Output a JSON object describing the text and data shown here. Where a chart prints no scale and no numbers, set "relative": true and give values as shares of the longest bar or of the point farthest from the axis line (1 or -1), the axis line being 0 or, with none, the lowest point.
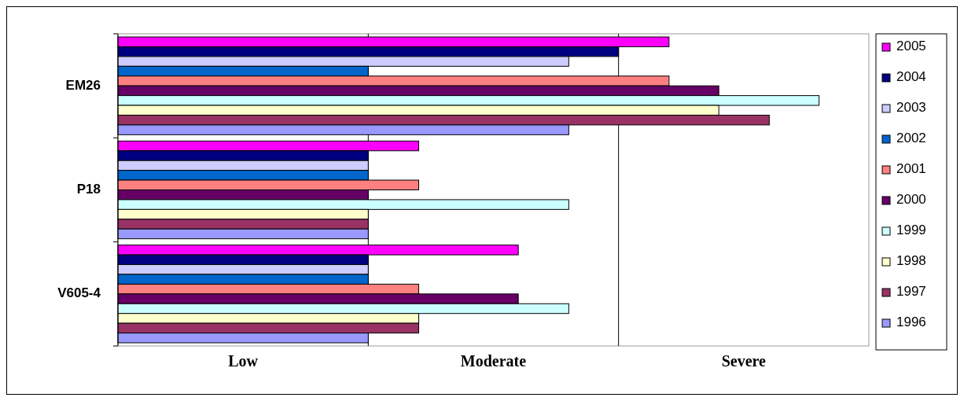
{
  "chart_data": {
    "type": "bar",
    "orientation": "horizontal",
    "relative": true,
    "categories": [
      "EM26",
      "P18",
      "V605-4"
    ],
    "legend": "right",
    "ref_lines": [
      {
        "axis": "x",
        "value": 0.357,
        "color": "#000000"
      },
      {
        "axis": "x",
        "value": 0.714,
        "color": "#000000"
      }
    ],
    "annotations": [
      "Low",
      "Moderate",
      "Severe"
    ],
    "series": [
      {
        "name": "2005",
        "color": "#ff00ff",
        "values": [
          0.786,
          0.429,
          0.571
        ]
      },
      {
        "name": "2004",
        "color": "#000080",
        "values": [
          0.714,
          0.357,
          0.357
        ]
      },
      {
        "name": "2003",
        "color": "#ccccff",
        "values": [
          0.643,
          0.357,
          0.357
        ]
      },
      {
        "name": "2002",
        "color": "#0066cc",
        "values": [
          0.357,
          0.357,
          0.357
        ]
      },
      {
        "name": "2001",
        "color": "#ff8080",
        "values": [
          0.786,
          0.429,
          0.429
        ]
      },
      {
        "name": "2000",
        "color": "#660066",
        "values": [
          0.857,
          0.357,
          0.571
        ]
      },
      {
        "name": "1999",
        "color": "#ccffff",
        "values": [
          1,
          0.643,
          0.643
        ]
      },
      {
        "name": "1998",
        "color": "#ffffcc",
        "values": [
          0.857,
          0.357,
          0.429
        ]
      },
      {
        "name": "1997",
        "color": "#993366",
        "values": [
          0.929,
          0.357,
          0.429
        ]
      },
      {
        "name": "1996",
        "color": "#9999ff",
        "values": [
          0.643,
          0.357,
          0.357
        ]
      }
    ]
  }
}
